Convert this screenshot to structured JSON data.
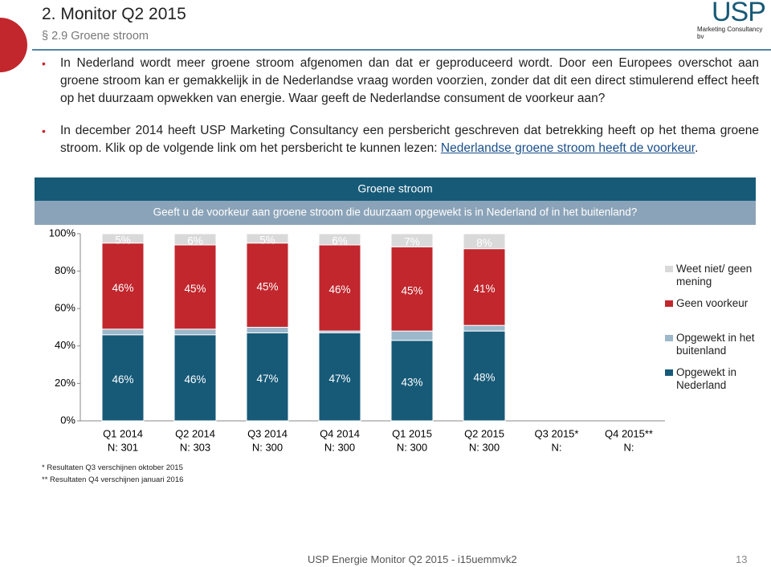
{
  "header": {
    "title": "2. Monitor Q2 2015",
    "subtitle": "§ 2.9 Groene stroom",
    "logo": "USP",
    "logo_sub": "Marketing Consultancy bv"
  },
  "bullets": [
    {
      "text": "In Nederland wordt meer groene stroom afgenomen dan dat er geproduceerd wordt. Door een Europees overschot aan groene stroom kan er gemakkelijk in de Nederlandse vraag worden voorzien, zonder dat dit een direct stimulerend effect heeft op het duurzaam opwekken van energie. Waar geeft de Nederlandse consument de voorkeur aan?"
    },
    {
      "text": "In december 2014 heeft USP Marketing Consultancy een persbericht geschreven dat betrekking heeft op het thema groene stroom. Klik op de volgende link om het persbericht te kunnen lezen:",
      "link": "Nederlandse groene stroom heeft de voorkeur",
      "after": "."
    }
  ],
  "chart_data": {
    "type": "stacked-bar",
    "title": "Groene stroom",
    "subtitle": "Geeft u de voorkeur aan groene stroom die duurzaam opgewekt is in Nederland of in het buitenland?",
    "categories": [
      "Q1 2014",
      "Q2 2014",
      "Q3 2014",
      "Q4 2014",
      "Q1 2015",
      "Q2 2015",
      "Q3 2015*",
      "Q4 2015**"
    ],
    "sample_labels": [
      "N: 301",
      "N: 303",
      "N: 300",
      "N: 300",
      "N: 300",
      "N: 300",
      "N:",
      "N:"
    ],
    "series": [
      {
        "name": "Opgewekt in Nederland",
        "color": "#175a78",
        "values": [
          46,
          46,
          47,
          47,
          43,
          48,
          null,
          null
        ],
        "value_labels": [
          "46%",
          "46%",
          "47%",
          "47%",
          "43%",
          "48%",
          null,
          null
        ]
      },
      {
        "name": "Opgewekt in het buitenland",
        "color": "#9db8cb",
        "values": [
          3,
          3,
          3,
          1,
          5,
          3,
          null,
          null
        ]
      },
      {
        "name": "Geen voorkeur",
        "color": "#c1272d",
        "values": [
          46,
          45,
          45,
          46,
          45,
          41,
          null,
          null
        ],
        "value_labels": [
          "46%",
          "45%",
          "45%",
          "46%",
          "45%",
          "41%",
          null,
          null
        ]
      },
      {
        "name": "Weet niet/ geen mening",
        "color": "#d9d9d9",
        "values": [
          5,
          6,
          5,
          6,
          7,
          8,
          null,
          null
        ],
        "value_labels": [
          "5%",
          "6%",
          "5%",
          "6%",
          "7%",
          "8%",
          null,
          null
        ]
      }
    ],
    "ylim": [
      0,
      100
    ],
    "yticks": [
      {
        "value": 0,
        "label": "0%"
      },
      {
        "value": 20,
        "label": "20%"
      },
      {
        "value": 40,
        "label": "40%"
      },
      {
        "value": 60,
        "label": "60%"
      },
      {
        "value": 80,
        "label": "80%"
      },
      {
        "value": 100,
        "label": "100%"
      }
    ],
    "footnotes": [
      "* Resultaten Q3 verschijnen oktober 2015",
      "** Resultaten Q4 verschijnen januari 2016"
    ]
  },
  "footer": {
    "text": "USP Energie Monitor Q2 2015 - i15uemmvk2",
    "page": "13"
  }
}
